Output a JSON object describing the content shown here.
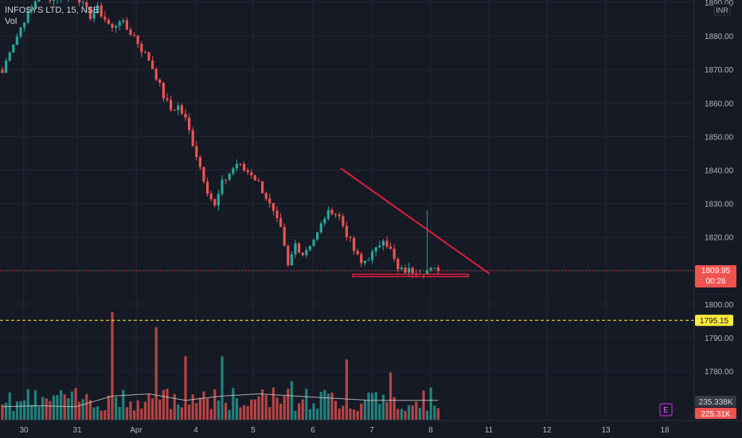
{
  "legend": {
    "symbol": "INFOSYS LTD, 15, NSE",
    "volume_label": "Vol"
  },
  "currency_label": "INR",
  "colors": {
    "background": "#161a25",
    "grid": "#232733",
    "up": "#26a69a",
    "down": "#ef5350",
    "trendline": "#e01e3c",
    "alert_line": "#ffeb3b",
    "axis_text": "#b2b5be",
    "vol_ma": "#c8c8c8",
    "earnings": "#9c27b0"
  },
  "chart_data": {
    "type": "candlestick",
    "ylim": [
      1766,
      1892
    ],
    "y_ticks": [
      1780,
      1790,
      1800,
      1810,
      1820,
      1830,
      1840,
      1850,
      1860,
      1870,
      1880,
      1890
    ],
    "x_labels": [
      "30",
      "31",
      "Apr",
      "4",
      "5",
      "6",
      "7",
      "8",
      "11",
      "12",
      "13",
      "18"
    ],
    "current_price": 1809.95,
    "countdown": "00:26",
    "alert_price": 1795.15,
    "volume_ma_value": "235.338K",
    "volume_current": "225.31K",
    "earnings_marker": "E",
    "price_path": [
      [
        0,
        1869
      ],
      [
        2,
        1876
      ],
      [
        4,
        1880
      ],
      [
        6,
        1885
      ],
      [
        8,
        1888
      ],
      [
        10,
        1893
      ],
      [
        12,
        1892
      ],
      [
        14,
        1891
      ],
      [
        16,
        1893
      ],
      [
        18,
        1892
      ],
      [
        20,
        1893
      ],
      [
        22,
        1889
      ],
      [
        24,
        1886
      ],
      [
        26,
        1888
      ],
      [
        28,
        1885
      ],
      [
        30,
        1882
      ],
      [
        32,
        1885
      ],
      [
        34,
        1882
      ],
      [
        36,
        1880
      ],
      [
        38,
        1876
      ],
      [
        40,
        1873
      ],
      [
        42,
        1868
      ],
      [
        44,
        1862
      ],
      [
        46,
        1858
      ],
      [
        48,
        1859
      ],
      [
        50,
        1855
      ],
      [
        52,
        1848
      ],
      [
        54,
        1841
      ],
      [
        56,
        1834
      ],
      [
        58,
        1829
      ],
      [
        60,
        1836
      ],
      [
        62,
        1839
      ],
      [
        64,
        1842
      ],
      [
        66,
        1840
      ],
      [
        68,
        1839
      ],
      [
        70,
        1836
      ],
      [
        72,
        1832
      ],
      [
        74,
        1827
      ],
      [
        76,
        1822
      ],
      [
        78,
        1811
      ],
      [
        80,
        1818
      ],
      [
        82,
        1815
      ],
      [
        84,
        1818
      ],
      [
        86,
        1821
      ],
      [
        88,
        1826
      ],
      [
        90,
        1828
      ],
      [
        92,
        1826
      ],
      [
        94,
        1821
      ],
      [
        96,
        1816
      ],
      [
        98,
        1812
      ],
      [
        100,
        1814
      ],
      [
        102,
        1816
      ],
      [
        104,
        1820
      ],
      [
        106,
        1816
      ],
      [
        108,
        1810
      ]
    ],
    "volume_ma_path": [
      [
        0,
        0.12
      ],
      [
        10,
        0.13
      ],
      [
        20,
        0.12
      ],
      [
        30,
        0.22
      ],
      [
        40,
        0.24
      ],
      [
        50,
        0.18
      ],
      [
        60,
        0.22
      ],
      [
        70,
        0.24
      ],
      [
        80,
        0.22
      ],
      [
        90,
        0.2
      ],
      [
        100,
        0.18
      ],
      [
        108,
        0.18
      ]
    ],
    "volume_spikes": [
      [
        30,
        1.0
      ],
      [
        42,
        0.86
      ],
      [
        50,
        0.59
      ],
      [
        60,
        0.59
      ],
      [
        71,
        0.28
      ],
      [
        79,
        0.36
      ],
      [
        94,
        0.56
      ],
      [
        106,
        0.44
      ]
    ],
    "trendline_descending": [
      [
        1840.5,
        1843
      ],
      [
        1809.0,
        1809
      ]
    ],
    "support_zone": [
      1808.9,
      1808.2
    ],
    "triangle_start_index": 67,
    "triangle_end_index": 93
  }
}
